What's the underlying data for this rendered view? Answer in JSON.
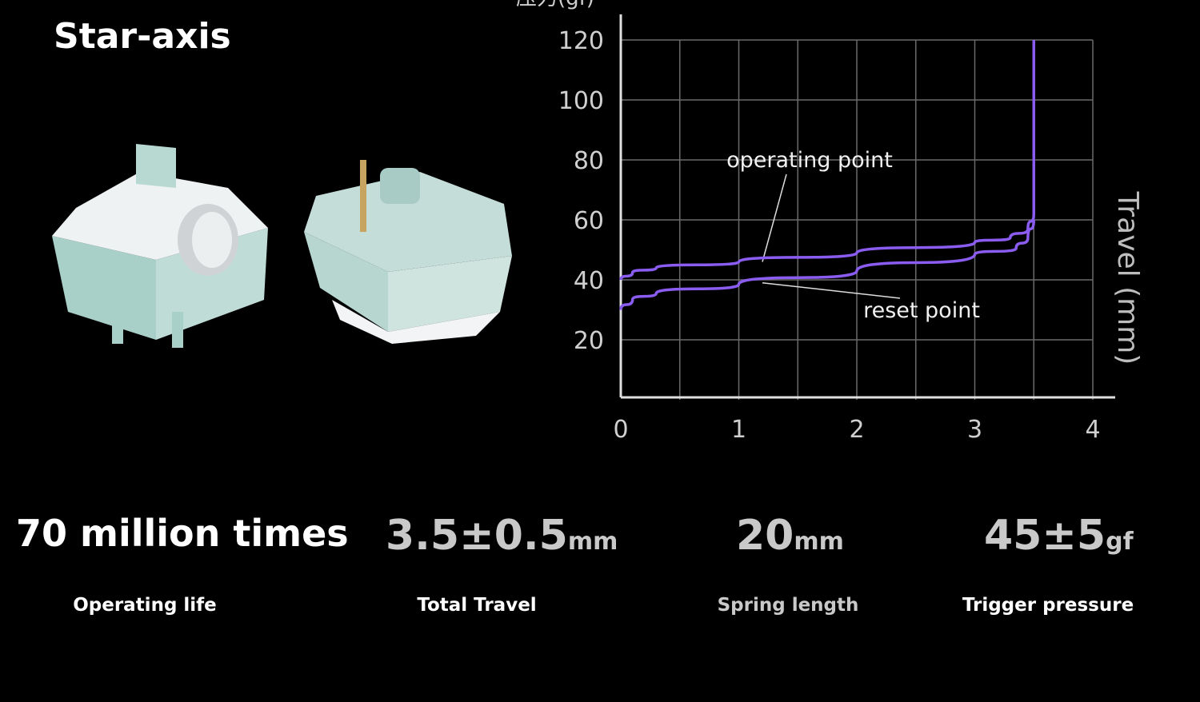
{
  "title": "Star-axis",
  "specs": [
    {
      "value": "70 million times",
      "unit": "",
      "label": "Operating life"
    },
    {
      "value": "3.5±0.5",
      "unit": "mm",
      "label": "Total Travel"
    },
    {
      "value": "20",
      "unit": "mm",
      "label": "Spring length"
    },
    {
      "value": "45±5",
      "unit": "gf",
      "label": "Trigger pressure"
    }
  ],
  "colors": {
    "curve": "#8a5cf0",
    "grid": "#6a6a6a",
    "axis": "#e0e0e0",
    "background": "#000000"
  },
  "chart_data": {
    "type": "line",
    "ylabel": "压力(gf)",
    "xlabel": "Travel (mm)",
    "xlim": [
      0,
      4
    ],
    "ylim": [
      0,
      120
    ],
    "xticks": [
      "0",
      "1",
      "2",
      "3",
      "4"
    ],
    "yticks": [
      "20",
      "40",
      "60",
      "80",
      "100",
      "120"
    ],
    "grid": true,
    "series": [
      {
        "x": [
          0,
          0.1,
          0.3,
          1.0,
          2.0,
          3.0,
          3.3,
          3.45,
          3.5,
          3.5
        ],
        "y": [
          40,
          42.5,
          44,
          46,
          49,
          52.5,
          54,
          57,
          62,
          120
        ]
      },
      {
        "x": [
          0,
          0.1,
          0.3,
          1.0,
          2.0,
          3.0,
          3.35,
          3.45,
          3.5
        ],
        "y": [
          30,
          33.5,
          35.5,
          38.5,
          43,
          48.5,
          50.5,
          54,
          60
        ]
      }
    ],
    "annotations": [
      {
        "text": "operating point",
        "x": 1.2,
        "y": 46
      },
      {
        "text": "reset point",
        "x": 1.2,
        "y": 39
      }
    ]
  }
}
